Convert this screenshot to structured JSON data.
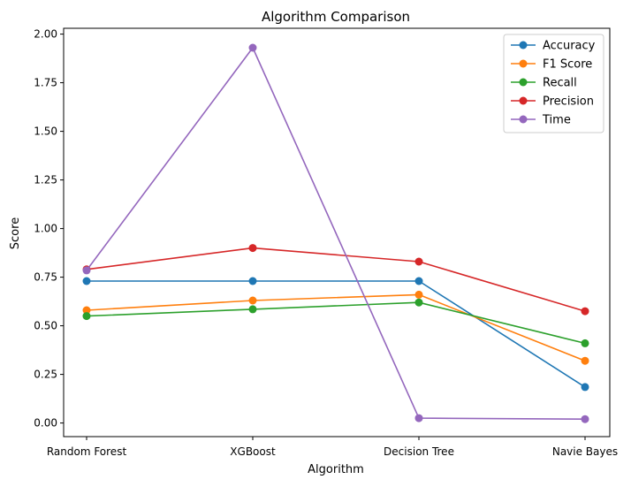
{
  "chart_data": {
    "type": "line",
    "title": "Algorithm Comparison",
    "xlabel": "Algorithm",
    "ylabel": "Score",
    "categories": [
      "Random Forest",
      "XGBoost",
      "Decision Tree",
      "Navie Bayes"
    ],
    "ylim": [
      -0.07,
      2.03
    ],
    "yticks": [
      0.0,
      0.25,
      0.5,
      0.75,
      1.0,
      1.25,
      1.5,
      1.75,
      2.0
    ],
    "ytick_labels": [
      "0.00",
      "0.25",
      "0.50",
      "0.75",
      "1.00",
      "1.25",
      "1.50",
      "1.75",
      "2.00"
    ],
    "grid": false,
    "legend_position": "top-right",
    "marker": "circle",
    "series": [
      {
        "name": "Accuracy",
        "color": "#1f77b4",
        "values": [
          0.73,
          0.73,
          0.73,
          0.185
        ]
      },
      {
        "name": "F1 Score",
        "color": "#ff7f0e",
        "values": [
          0.58,
          0.63,
          0.66,
          0.32
        ]
      },
      {
        "name": "Recall",
        "color": "#2ca02c",
        "values": [
          0.55,
          0.585,
          0.62,
          0.41
        ]
      },
      {
        "name": "Precision",
        "color": "#d62728",
        "values": [
          0.79,
          0.9,
          0.83,
          0.575
        ]
      },
      {
        "name": "Time",
        "color": "#9467bd",
        "values": [
          0.785,
          1.93,
          0.025,
          0.02
        ]
      }
    ]
  }
}
